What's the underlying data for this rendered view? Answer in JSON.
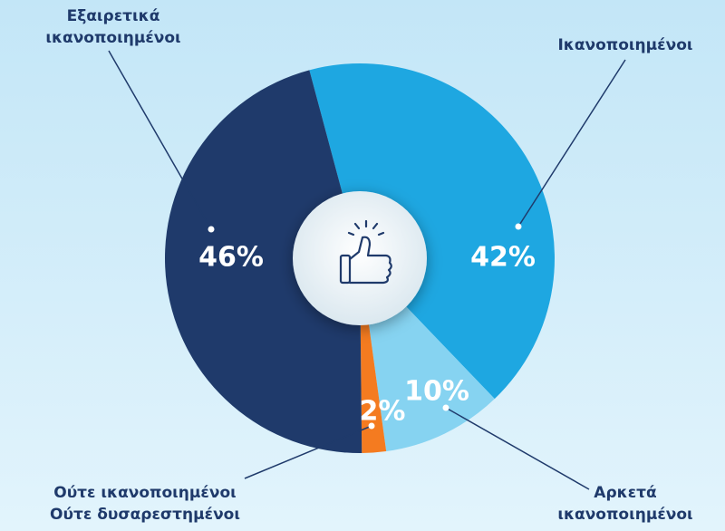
{
  "chart_data": {
    "type": "pie",
    "categories": [
      "Ικανοποιημένοι",
      "Αρκετά\nικανοποιημένοι",
      "Ούτε ικανοποιημένοι\nΟύτε δυσαρεστημένοι",
      "Εξαιρετικά\nικανοποιημένοι"
    ],
    "values": [
      42,
      10,
      2,
      46
    ],
    "value_labels": [
      "42%",
      "10%",
      "2%",
      "46%"
    ],
    "colors": [
      "#1ea7e1",
      "#86d3f1",
      "#f47b20",
      "#1f3a6b"
    ]
  }
}
